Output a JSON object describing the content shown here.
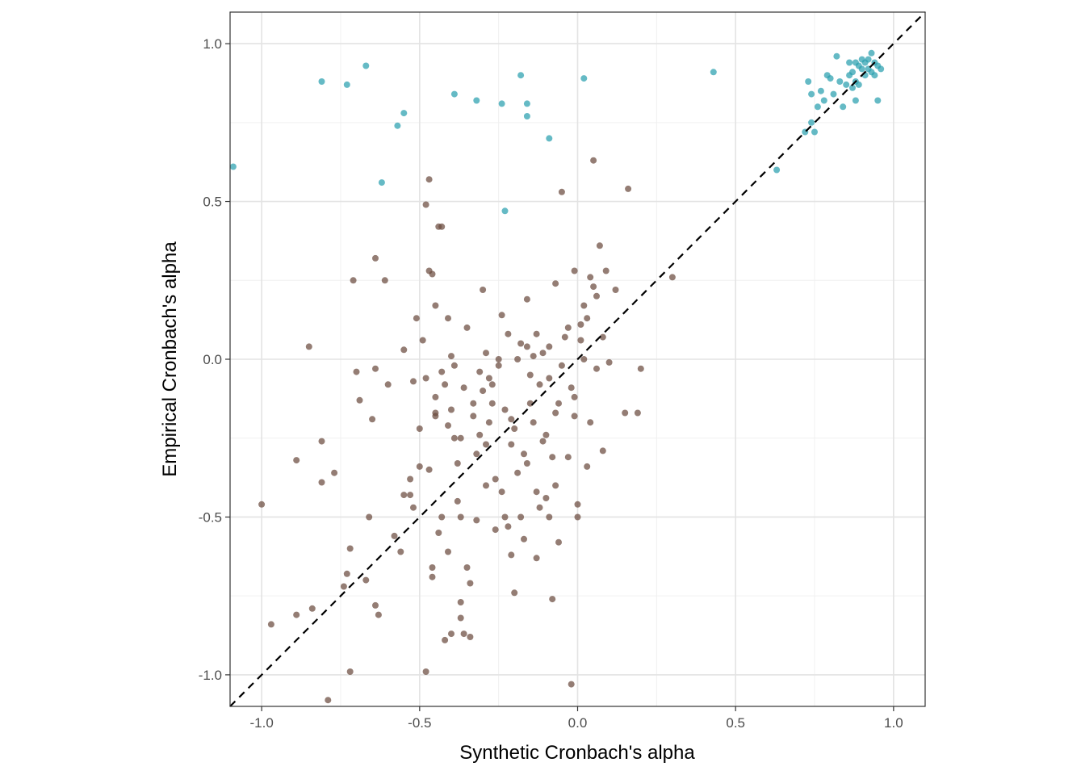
{
  "chart_data": {
    "type": "scatter",
    "title": "",
    "xlabel": "Synthetic Cronbach's alpha",
    "ylabel": "Empirical Cronbach's alpha",
    "xlim": [
      -1.1,
      1.1
    ],
    "ylim": [
      -1.1,
      1.1
    ],
    "x_ticks": [
      -1.0,
      -0.5,
      0.0,
      0.5,
      1.0
    ],
    "y_ticks": [
      -1.0,
      -0.5,
      0.0,
      0.5,
      1.0
    ],
    "x_tick_labels": [
      "-1.0",
      "-0.5",
      "0.0",
      "0.5",
      "1.0"
    ],
    "y_tick_labels": [
      "-1.0",
      "-0.5",
      "0.0",
      "0.5",
      "1.0"
    ],
    "grid": true,
    "legend": "none",
    "reference_line": {
      "type": "identity",
      "style": "dashed",
      "color": "#000000"
    },
    "series": [
      {
        "color": "#2a9fae",
        "points": [
          [
            -1.09,
            0.61
          ],
          [
            -0.81,
            0.88
          ],
          [
            -0.73,
            0.87
          ],
          [
            -0.67,
            0.93
          ],
          [
            -0.62,
            0.56
          ],
          [
            -0.57,
            0.74
          ],
          [
            -0.55,
            0.78
          ],
          [
            -0.39,
            0.84
          ],
          [
            -0.32,
            0.82
          ],
          [
            -0.24,
            0.81
          ],
          [
            -0.23,
            0.47
          ],
          [
            -0.18,
            0.9
          ],
          [
            -0.16,
            0.81
          ],
          [
            -0.16,
            0.77
          ],
          [
            -0.09,
            0.7
          ],
          [
            0.02,
            0.89
          ],
          [
            0.43,
            0.91
          ],
          [
            0.63,
            0.6
          ],
          [
            0.72,
            0.72
          ],
          [
            0.73,
            0.88
          ],
          [
            0.74,
            0.84
          ],
          [
            0.74,
            0.75
          ],
          [
            0.75,
            0.72
          ],
          [
            0.76,
            0.8
          ],
          [
            0.77,
            0.85
          ],
          [
            0.78,
            0.82
          ],
          [
            0.79,
            0.9
          ],
          [
            0.8,
            0.89
          ],
          [
            0.81,
            0.84
          ],
          [
            0.82,
            0.96
          ],
          [
            0.83,
            0.88
          ],
          [
            0.84,
            0.8
          ],
          [
            0.85,
            0.87
          ],
          [
            0.86,
            0.94
          ],
          [
            0.87,
            0.91
          ],
          [
            0.88,
            0.88
          ],
          [
            0.88,
            0.82
          ],
          [
            0.89,
            0.93
          ],
          [
            0.9,
            0.95
          ],
          [
            0.91,
            0.94
          ],
          [
            0.92,
            0.92
          ],
          [
            0.93,
            0.97
          ],
          [
            0.94,
            0.9
          ],
          [
            0.95,
            0.82
          ],
          [
            0.96,
            0.92
          ],
          [
            0.88,
            0.94
          ],
          [
            0.89,
            0.87
          ],
          [
            0.9,
            0.92
          ],
          [
            0.92,
            0.95
          ],
          [
            0.93,
            0.91
          ],
          [
            0.94,
            0.94
          ],
          [
            0.87,
            0.86
          ],
          [
            0.91,
            0.9
          ],
          [
            0.86,
            0.9
          ],
          [
            0.95,
            0.93
          ]
        ]
      },
      {
        "color": "#6b4b3e",
        "points": [
          [
            -1.0,
            -0.46
          ],
          [
            -0.97,
            -0.84
          ],
          [
            -0.89,
            -0.81
          ],
          [
            -0.89,
            -0.32
          ],
          [
            -0.85,
            0.04
          ],
          [
            -0.84,
            -0.79
          ],
          [
            -0.81,
            -0.26
          ],
          [
            -0.81,
            -0.39
          ],
          [
            -0.79,
            -1.08
          ],
          [
            -0.77,
            -0.36
          ],
          [
            -0.74,
            -0.72
          ],
          [
            -0.73,
            -0.68
          ],
          [
            -0.72,
            -0.6
          ],
          [
            -0.72,
            -0.99
          ],
          [
            -0.71,
            0.25
          ],
          [
            -0.7,
            -0.04
          ],
          [
            -0.69,
            -0.13
          ],
          [
            -0.67,
            -0.7
          ],
          [
            -0.66,
            -0.5
          ],
          [
            -0.65,
            -0.19
          ],
          [
            -0.64,
            0.32
          ],
          [
            -0.64,
            -0.03
          ],
          [
            -0.64,
            -0.78
          ],
          [
            -0.63,
            -0.81
          ],
          [
            -0.61,
            0.25
          ],
          [
            -0.6,
            -0.08
          ],
          [
            -0.55,
            0.03
          ],
          [
            -0.55,
            -0.43
          ],
          [
            -0.53,
            -0.43
          ],
          [
            -0.52,
            -0.07
          ],
          [
            -0.51,
            0.13
          ],
          [
            -0.5,
            -0.34
          ],
          [
            -0.49,
            0.06
          ],
          [
            -0.48,
            0.49
          ],
          [
            -0.48,
            -0.99
          ],
          [
            -0.47,
            0.57
          ],
          [
            -0.47,
            0.28
          ],
          [
            -0.46,
            0.27
          ],
          [
            -0.46,
            -0.66
          ],
          [
            -0.46,
            -0.69
          ],
          [
            -0.45,
            0.17
          ],
          [
            -0.45,
            -0.12
          ],
          [
            -0.45,
            -0.18
          ],
          [
            -0.44,
            0.42
          ],
          [
            -0.43,
            0.42
          ],
          [
            -0.43,
            -0.04
          ],
          [
            -0.43,
            -0.5
          ],
          [
            -0.42,
            -0.89
          ],
          [
            -0.41,
            0.13
          ],
          [
            -0.41,
            -0.21
          ],
          [
            -0.4,
            -0.16
          ],
          [
            -0.4,
            0.01
          ],
          [
            -0.4,
            -0.87
          ],
          [
            -0.39,
            -0.25
          ],
          [
            -0.38,
            -0.33
          ],
          [
            -0.37,
            -0.25
          ],
          [
            -0.37,
            -0.5
          ],
          [
            -0.37,
            -0.77
          ],
          [
            -0.37,
            -0.82
          ],
          [
            -0.36,
            -0.87
          ],
          [
            -0.34,
            -0.71
          ],
          [
            -0.34,
            -0.88
          ],
          [
            -0.33,
            -0.14
          ],
          [
            -0.32,
            -0.51
          ],
          [
            -0.31,
            -0.24
          ],
          [
            -0.3,
            0.22
          ],
          [
            -0.3,
            -0.1
          ],
          [
            -0.29,
            -0.27
          ],
          [
            -0.28,
            -0.06
          ],
          [
            -0.27,
            -0.14
          ],
          [
            -0.26,
            -0.38
          ],
          [
            -0.25,
            -0.02
          ],
          [
            -0.24,
            0.14
          ],
          [
            -0.23,
            -0.5
          ],
          [
            -0.22,
            -0.53
          ],
          [
            -0.21,
            -0.19
          ],
          [
            -0.21,
            -0.27
          ],
          [
            -0.2,
            -0.74
          ],
          [
            -0.19,
            0.0
          ],
          [
            -0.18,
            -0.5
          ],
          [
            -0.17,
            -0.3
          ],
          [
            -0.16,
            0.04
          ],
          [
            -0.16,
            0.19
          ],
          [
            -0.16,
            -0.33
          ],
          [
            -0.15,
            -0.14
          ],
          [
            -0.14,
            0.01
          ],
          [
            -0.13,
            -0.63
          ],
          [
            -0.13,
            -0.42
          ],
          [
            -0.12,
            -0.47
          ],
          [
            -0.11,
            -0.26
          ],
          [
            -0.1,
            -0.24
          ],
          [
            -0.09,
            0.04
          ],
          [
            -0.09,
            -0.5
          ],
          [
            -0.08,
            -0.31
          ],
          [
            -0.08,
            -0.76
          ],
          [
            -0.07,
            0.24
          ],
          [
            -0.07,
            -0.4
          ],
          [
            -0.06,
            -0.58
          ],
          [
            -0.05,
            0.53
          ],
          [
            -0.04,
            0.07
          ],
          [
            -0.03,
            -0.31
          ],
          [
            -0.02,
            -1.03
          ],
          [
            -0.01,
            0.28
          ],
          [
            -0.01,
            -0.12
          ],
          [
            -0.01,
            -0.18
          ],
          [
            0.0,
            -0.46
          ],
          [
            0.0,
            -0.5
          ],
          [
            0.01,
            0.11
          ],
          [
            0.02,
            0.0
          ],
          [
            0.03,
            -0.34
          ],
          [
            0.04,
            0.26
          ],
          [
            0.05,
            0.23
          ],
          [
            0.05,
            0.63
          ],
          [
            0.06,
            -0.03
          ],
          [
            0.07,
            0.36
          ],
          [
            0.08,
            -0.29
          ],
          [
            0.09,
            0.28
          ],
          [
            0.1,
            -0.01
          ],
          [
            0.12,
            0.22
          ],
          [
            0.15,
            -0.17
          ],
          [
            0.16,
            0.54
          ],
          [
            0.19,
            -0.17
          ],
          [
            0.2,
            -0.03
          ],
          [
            0.3,
            0.26
          ],
          [
            -0.48,
            -0.06
          ],
          [
            -0.45,
            -0.17
          ],
          [
            -0.42,
            -0.08
          ],
          [
            -0.39,
            -0.02
          ],
          [
            -0.36,
            -0.09
          ],
          [
            -0.33,
            -0.18
          ],
          [
            -0.31,
            -0.04
          ],
          [
            -0.29,
            0.02
          ],
          [
            -0.27,
            -0.08
          ],
          [
            -0.25,
            0.0
          ],
          [
            -0.23,
            -0.16
          ],
          [
            -0.2,
            -0.22
          ],
          [
            -0.18,
            0.05
          ],
          [
            -0.15,
            -0.05
          ],
          [
            -0.13,
            0.08
          ],
          [
            -0.11,
            0.02
          ],
          [
            -0.09,
            -0.06
          ],
          [
            -0.06,
            -0.14
          ],
          [
            -0.03,
            0.1
          ],
          [
            0.01,
            0.06
          ],
          [
            0.04,
            -0.2
          ],
          [
            0.06,
            0.2
          ],
          [
            0.08,
            0.07
          ],
          [
            -0.52,
            -0.47
          ],
          [
            -0.5,
            -0.22
          ],
          [
            -0.47,
            -0.35
          ],
          [
            -0.44,
            -0.55
          ],
          [
            -0.41,
            -0.61
          ],
          [
            -0.38,
            -0.45
          ],
          [
            -0.35,
            -0.66
          ],
          [
            -0.32,
            -0.3
          ],
          [
            -0.29,
            -0.4
          ],
          [
            -0.26,
            -0.54
          ],
          [
            -0.24,
            -0.42
          ],
          [
            -0.21,
            -0.62
          ],
          [
            -0.19,
            -0.36
          ],
          [
            -0.17,
            -0.57
          ],
          [
            -0.14,
            -0.2
          ],
          [
            -0.12,
            -0.08
          ],
          [
            -0.1,
            -0.44
          ],
          [
            -0.07,
            -0.17
          ],
          [
            -0.05,
            -0.02
          ],
          [
            -0.02,
            -0.09
          ],
          [
            0.02,
            0.17
          ],
          [
            0.03,
            0.13
          ],
          [
            -0.58,
            -0.56
          ],
          [
            -0.56,
            -0.61
          ],
          [
            -0.53,
            -0.38
          ],
          [
            -0.35,
            0.1
          ],
          [
            -0.28,
            -0.2
          ],
          [
            -0.22,
            0.08
          ]
        ]
      }
    ]
  }
}
